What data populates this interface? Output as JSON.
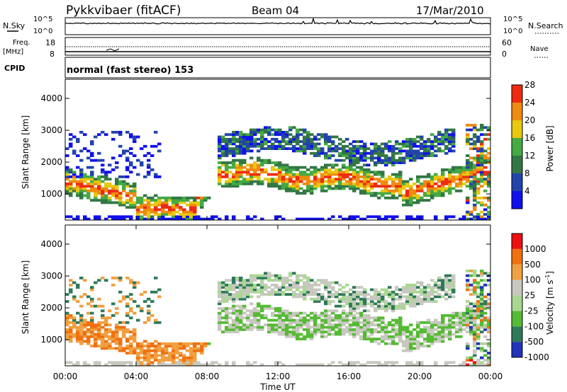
{
  "header": {
    "station": "Pykkvibaer (fitACF)",
    "beam": "Beam 04",
    "date": "17/Mar/2010"
  },
  "noise_panel": {
    "left_label": "N.Sky",
    "right_label": "N.Search",
    "ticks_left": [
      "10^5",
      "10^0"
    ],
    "ticks_right": [
      "10^5",
      "10^0"
    ]
  },
  "freq_panel": {
    "left_label_1": "Freq.",
    "left_label_2": "[MHz]",
    "right_label": "Nave",
    "ticks_left": [
      "18",
      "8"
    ],
    "ticks_right": [
      "60",
      "0"
    ]
  },
  "cpid_panel": {
    "label": "CPID",
    "text": "normal (fast stereo) 153"
  },
  "chart_data": [
    {
      "type": "heatmap",
      "name": "power",
      "ylabel": "Slant Range [km]",
      "y_ticks": [
        "1000",
        "2000",
        "3000",
        "4000"
      ],
      "ylim": [
        180,
        4600
      ],
      "xlim": [
        0,
        24
      ],
      "colorbar_label": "Power [dB]",
      "colorbar_ticks": [
        "4",
        "8",
        "12",
        "16",
        "20",
        "24",
        "28"
      ],
      "colors": [
        "#1010ee",
        "#2244aa",
        "#337744",
        "#44aa44",
        "#e8c810",
        "#f08a10",
        "#ee2a10"
      ]
    },
    {
      "type": "heatmap",
      "name": "velocity",
      "ylabel": "Slant Range [km]",
      "y_ticks": [
        "1000",
        "2000",
        "3000",
        "4000"
      ],
      "ylim": [
        180,
        4600
      ],
      "xlim": [
        0,
        24
      ],
      "xlabel": "Time UT",
      "x_ticks": [
        "00:00",
        "04:00",
        "08:00",
        "12:00",
        "16:00",
        "20:00",
        "00:00"
      ],
      "colorbar_label": "Velocity  [m s",
      "colorbar_label_sup": "-1",
      "colorbar_label_end": "]",
      "colorbar_ticks": [
        "1000",
        "500",
        "100",
        "25",
        "-25",
        "-100",
        "-500",
        "-1000"
      ],
      "colors": [
        "#2233bb",
        "#2e7a5a",
        "#55bb33",
        "#a8d890",
        "#c8c8c0",
        "#f0a040",
        "#f07010",
        "#ee1010"
      ]
    }
  ]
}
